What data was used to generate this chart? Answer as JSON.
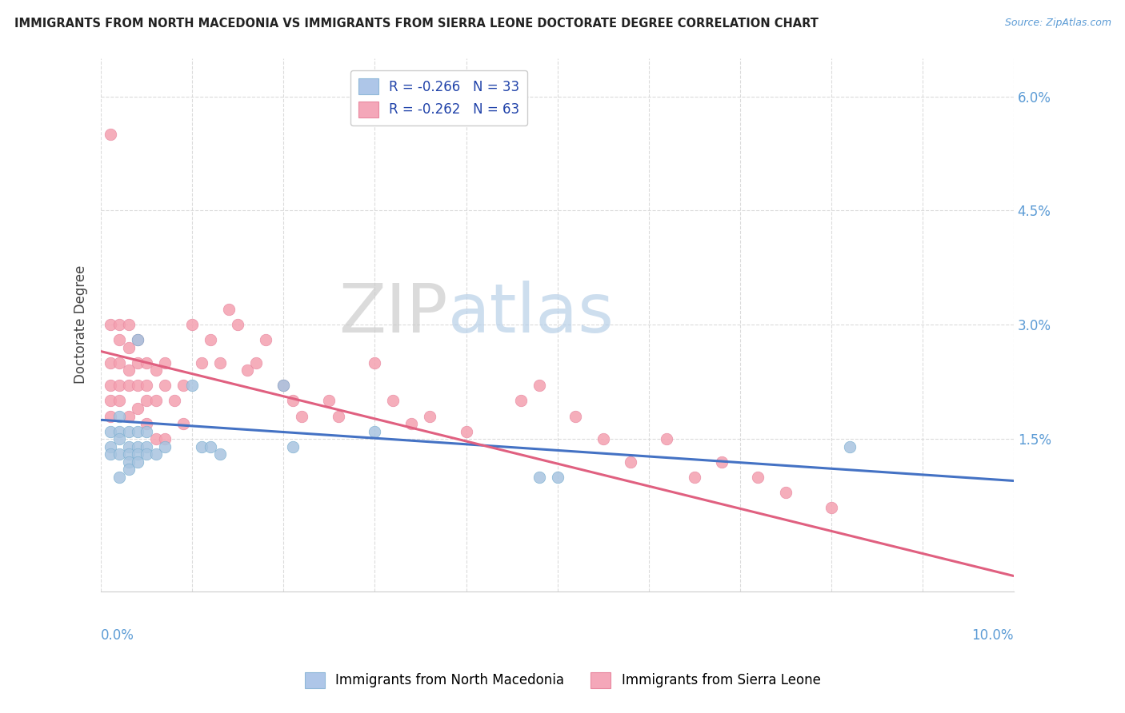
{
  "title": "IMMIGRANTS FROM NORTH MACEDONIA VS IMMIGRANTS FROM SIERRA LEONE DOCTORATE DEGREE CORRELATION CHART",
  "source": "Source: ZipAtlas.com",
  "ylabel": "Doctorate Degree",
  "ylabel_right_ticks": [
    "6.0%",
    "4.5%",
    "3.0%",
    "1.5%"
  ],
  "ylabel_right_vals": [
    0.06,
    0.045,
    0.03,
    0.015
  ],
  "legend1_label": "R = -0.266   N = 33",
  "legend2_label": "R = -0.262   N = 63",
  "legend1_color": "#aec6e8",
  "legend2_color": "#f4a7b9",
  "scatter_color_blue": "#a8c4e0",
  "scatter_color_pink": "#f4a0b0",
  "line_color_blue": "#4472c4",
  "line_color_pink": "#e06080",
  "watermark_zip": "ZIP",
  "watermark_atlas": "atlas",
  "xlim": [
    0.0,
    0.1
  ],
  "ylim": [
    -0.005,
    0.065
  ],
  "background_color": "#ffffff",
  "grid_color": "#d8d8d8",
  "blue_x": [
    0.001,
    0.001,
    0.001,
    0.002,
    0.002,
    0.002,
    0.002,
    0.002,
    0.003,
    0.003,
    0.003,
    0.003,
    0.003,
    0.004,
    0.004,
    0.004,
    0.004,
    0.004,
    0.005,
    0.005,
    0.005,
    0.006,
    0.007,
    0.01,
    0.011,
    0.012,
    0.013,
    0.02,
    0.021,
    0.03,
    0.048,
    0.05,
    0.082
  ],
  "blue_y": [
    0.014,
    0.016,
    0.013,
    0.018,
    0.016,
    0.015,
    0.013,
    0.01,
    0.016,
    0.014,
    0.013,
    0.012,
    0.011,
    0.028,
    0.016,
    0.014,
    0.013,
    0.012,
    0.016,
    0.014,
    0.013,
    0.013,
    0.014,
    0.022,
    0.014,
    0.014,
    0.013,
    0.022,
    0.014,
    0.016,
    0.01,
    0.01,
    0.014
  ],
  "pink_x": [
    0.001,
    0.001,
    0.001,
    0.001,
    0.001,
    0.001,
    0.002,
    0.002,
    0.002,
    0.002,
    0.002,
    0.003,
    0.003,
    0.003,
    0.003,
    0.003,
    0.004,
    0.004,
    0.004,
    0.004,
    0.005,
    0.005,
    0.005,
    0.005,
    0.006,
    0.006,
    0.006,
    0.007,
    0.007,
    0.007,
    0.008,
    0.009,
    0.009,
    0.01,
    0.011,
    0.012,
    0.013,
    0.014,
    0.015,
    0.016,
    0.017,
    0.018,
    0.02,
    0.021,
    0.022,
    0.025,
    0.026,
    0.03,
    0.032,
    0.034,
    0.036,
    0.04,
    0.046,
    0.048,
    0.052,
    0.055,
    0.058,
    0.062,
    0.065,
    0.068,
    0.072,
    0.075,
    0.08
  ],
  "pink_y": [
    0.055,
    0.03,
    0.025,
    0.022,
    0.02,
    0.018,
    0.03,
    0.028,
    0.025,
    0.022,
    0.02,
    0.03,
    0.027,
    0.024,
    0.022,
    0.018,
    0.028,
    0.025,
    0.022,
    0.019,
    0.025,
    0.022,
    0.02,
    0.017,
    0.024,
    0.02,
    0.015,
    0.025,
    0.022,
    0.015,
    0.02,
    0.022,
    0.017,
    0.03,
    0.025,
    0.028,
    0.025,
    0.032,
    0.03,
    0.024,
    0.025,
    0.028,
    0.022,
    0.02,
    0.018,
    0.02,
    0.018,
    0.025,
    0.02,
    0.017,
    0.018,
    0.016,
    0.02,
    0.022,
    0.018,
    0.015,
    0.012,
    0.015,
    0.01,
    0.012,
    0.01,
    0.008,
    0.006
  ],
  "blue_trendline_x": [
    0.0,
    0.1
  ],
  "blue_trendline_y": [
    0.0175,
    0.0095
  ],
  "pink_trendline_x": [
    0.0,
    0.1
  ],
  "pink_trendline_y": [
    0.0265,
    -0.003
  ]
}
